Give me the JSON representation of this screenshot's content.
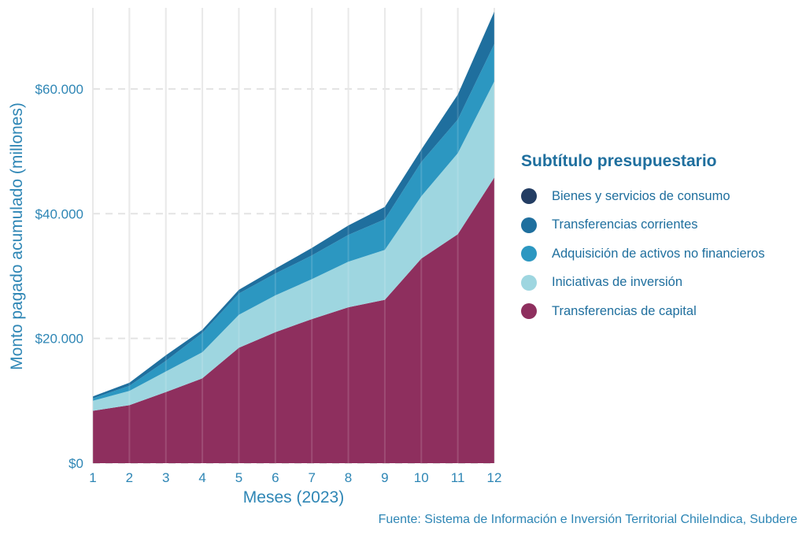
{
  "chart_data": {
    "type": "area",
    "stacked": true,
    "x": [
      1,
      2,
      3,
      4,
      5,
      6,
      7,
      8,
      9,
      10,
      11,
      12
    ],
    "xlabel": "Meses (2023)",
    "ylabel": "Monto pagado acumulado (millones)",
    "ylim": [
      0,
      73000
    ],
    "y_ticks": [
      0,
      20000,
      40000,
      60000
    ],
    "y_tick_labels": [
      "$0",
      "$20.000",
      "$40.000",
      "$60.000"
    ],
    "grid": true,
    "legend_title": "Subtítulo presupuestario",
    "legend_position": "right",
    "series": [
      {
        "name": "Transferencias de capital",
        "color": "#8e2f5e",
        "values": [
          8400,
          9300,
          11400,
          13600,
          18500,
          21000,
          23100,
          25000,
          26200,
          32800,
          36700,
          45800
        ]
      },
      {
        "name": "Iniciativas de inversión",
        "color": "#9ed6e0",
        "values": [
          1600,
          2300,
          3300,
          4200,
          5300,
          5900,
          6400,
          7300,
          8000,
          10000,
          13000,
          15400
        ]
      },
      {
        "name": "Adquisición de activos no financieros",
        "color": "#2c97c1",
        "values": [
          400,
          800,
          1700,
          3100,
          3400,
          3500,
          3800,
          4300,
          4900,
          5500,
          5400,
          6000
        ]
      },
      {
        "name": "Transferencias corrientes",
        "color": "#1f6f9e",
        "values": [
          300,
          500,
          900,
          500,
          600,
          800,
          1200,
          1500,
          2000,
          2000,
          4000,
          5200
        ]
      },
      {
        "name": "Bienes y servicios de consumo",
        "color": "#233d63",
        "values": [
          0,
          0,
          0,
          0,
          0,
          0,
          0,
          0,
          0,
          0,
          0,
          0
        ]
      }
    ]
  },
  "legend_order": [
    "Bienes y servicios de consumo",
    "Transferencias corrientes",
    "Adquisición de activos no financieros",
    "Iniciativas de inversión",
    "Transferencias de capital"
  ],
  "source": "Fuente: Sistema de Información e Inversión Territorial ChileIndica, Subdere"
}
